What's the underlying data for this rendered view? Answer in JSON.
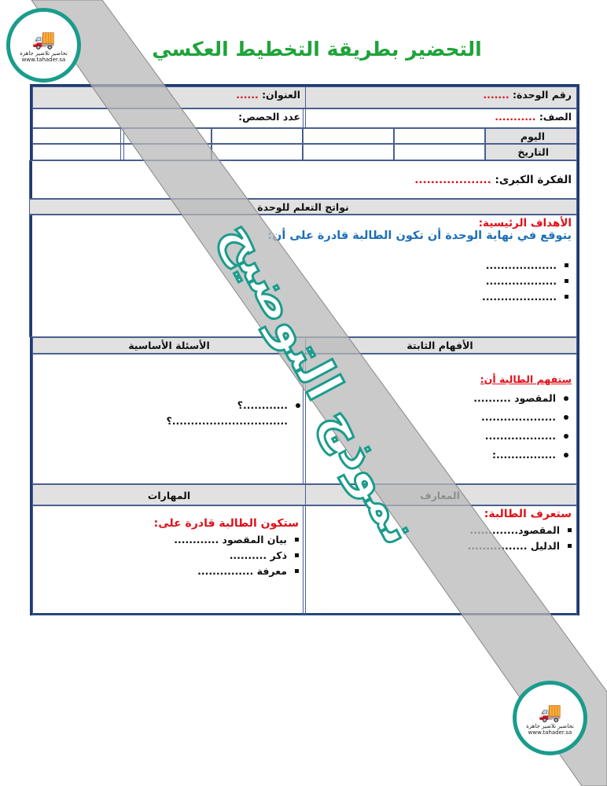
{
  "title": "التحضير بطريقة التخطيط العكسي",
  "header": {
    "unit_label": "رقم الوحدة:",
    "unit_value": ".......",
    "topic_label": "العنوان:",
    "topic_value": "......",
    "class_label": "الصف:",
    "class_value": "...........",
    "periods_label": "عدد الحصص:",
    "day_label": "اليوم",
    "date_label": "التاريخ"
  },
  "big_idea": {
    "label": "الفكرة الكبرى:",
    "value": "..................."
  },
  "outcomes": {
    "header": "نواتج التعلم للوحدة",
    "goals_title": "الأهداف الرئيسية:",
    "goals_intro": "يتوقع في نهاية الوحدة أن تكون الطالبة قادرة على أن:",
    "items": [
      "...................",
      "...................",
      "...................."
    ]
  },
  "understandings": {
    "header": "الأفهام الثابتة",
    "intro": "ستفهم الطالبة أن:",
    "items": [
      "المقصود ..........",
      "....................",
      "...................",
      "................:"
    ]
  },
  "questions": {
    "header": "الأسئلة الأساسية",
    "items": [
      "............؟",
      "...............................؟"
    ]
  },
  "knowledge": {
    "header": "المعارف",
    "intro": "ستعرف الطالبة:",
    "items": [
      "المقصود.............",
      "الدليل ................"
    ]
  },
  "skills": {
    "header": "المهارات",
    "intro": "ستكون الطالبة قادرة على:",
    "items": [
      "بيان المقصود ............",
      "ذكر ..........",
      "معرفة ..............."
    ]
  },
  "watermark": "نموذج التوضيح",
  "logo": {
    "name": "تحاضير تلاضير جاهزة",
    "url": "www.tahader.sa"
  },
  "colors": {
    "title": "#1fa33a",
    "border": "#1f3b73",
    "red": "#e0101a",
    "blue": "#1d6fb8",
    "teal": "#1a9c8c",
    "band": "#c8c8c8"
  }
}
